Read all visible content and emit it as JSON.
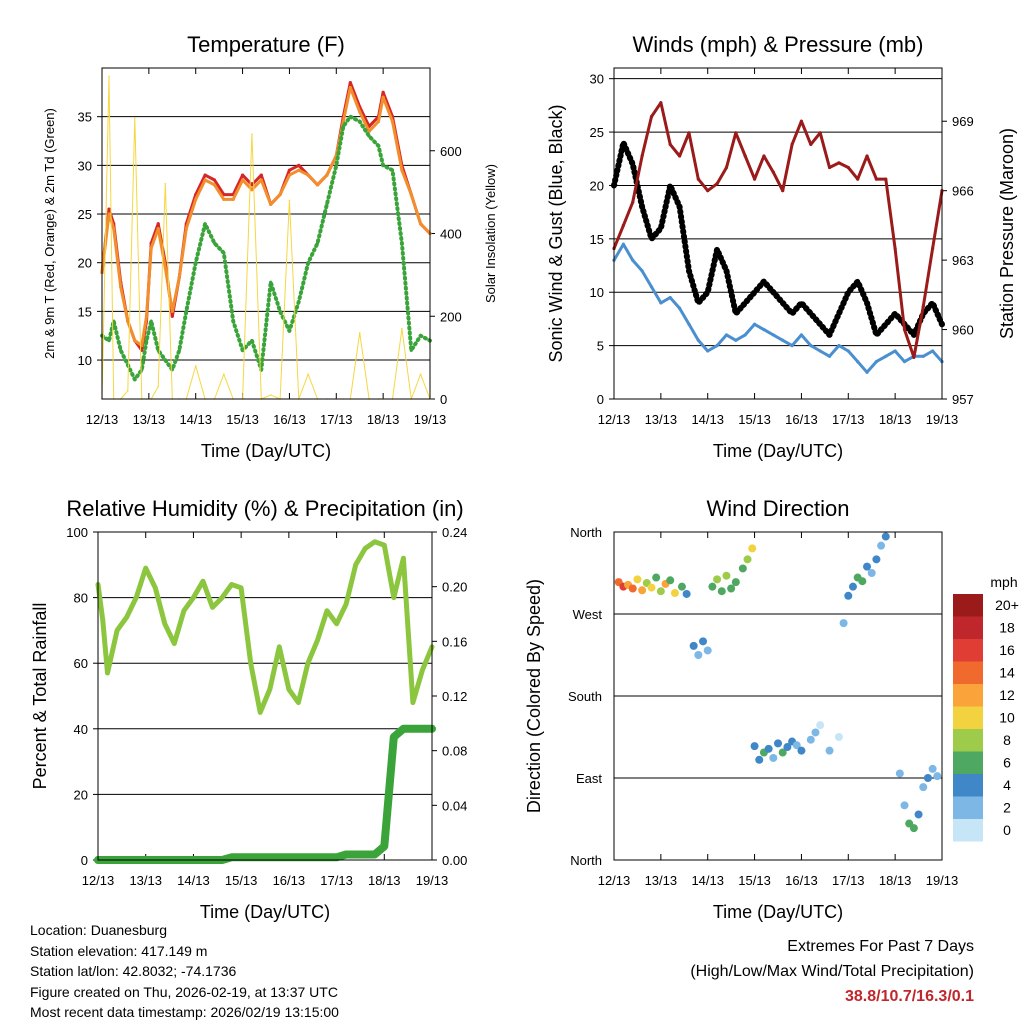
{
  "days": [
    "12/13",
    "13/13",
    "14/13",
    "15/13",
    "16/13",
    "17/13",
    "18/13",
    "19/13"
  ],
  "chart_data": [
    {
      "id": "temperature",
      "type": "line",
      "title": "Temperature (F)",
      "xlabel": "Time (Day/UTC)",
      "ylabel": "2m & 9m T (Red, Orange) & 2m Td (Green)",
      "ylabel_right": "Solar Insolation (Yellow)",
      "ylim": [
        6,
        40
      ],
      "yticks": [
        10,
        15,
        20,
        25,
        30,
        35
      ],
      "ylim_right": [
        0,
        800
      ],
      "yticks_right": [
        0,
        200,
        400,
        600
      ],
      "x_days": [
        0,
        0.15,
        0.25,
        0.4,
        0.55,
        0.7,
        0.85,
        0.95,
        1.05,
        1.2,
        1.35,
        1.5,
        1.65,
        1.8,
        2.0,
        2.2,
        2.4,
        2.6,
        2.8,
        3.0,
        3.2,
        3.4,
        3.6,
        3.8,
        4.0,
        4.2,
        4.4,
        4.6,
        4.8,
        5.0,
        5.15,
        5.3,
        5.5,
        5.7,
        5.9,
        6.0,
        6.2,
        6.4,
        6.6,
        6.8,
        7.0
      ],
      "series": [
        {
          "name": "2m T",
          "color": "#d62728",
          "values": [
            19,
            25.5,
            24,
            18,
            14,
            12,
            11,
            14,
            22,
            24,
            20,
            14.5,
            18.5,
            24,
            27,
            29,
            28.5,
            27,
            27,
            29,
            28,
            29,
            26,
            27,
            29.5,
            30,
            29,
            28,
            29,
            31,
            35,
            38.5,
            36,
            34,
            35,
            37.5,
            35,
            30,
            27,
            24,
            23
          ]
        },
        {
          "name": "9m T",
          "color": "#f28e2b",
          "values": [
            19,
            25,
            23.5,
            17.5,
            14,
            12,
            11.5,
            14.5,
            21.5,
            23.5,
            19.5,
            15,
            18.5,
            23.5,
            26.5,
            28.5,
            28,
            26.5,
            26.5,
            28.5,
            27.5,
            28.5,
            26,
            27,
            29,
            29.5,
            29,
            28,
            29,
            31,
            34.5,
            38,
            35.5,
            33.5,
            34.5,
            37,
            34.5,
            29.5,
            27,
            24,
            23
          ]
        },
        {
          "name": "2m Td",
          "color": "#3aa43a",
          "values": [
            12.5,
            12,
            14,
            11,
            9.5,
            8,
            9,
            12,
            14,
            11,
            10,
            9,
            11,
            15,
            20,
            24,
            22,
            21,
            14,
            11,
            12,
            9,
            18,
            15,
            13,
            16,
            20,
            22,
            26,
            30,
            34,
            35,
            34.5,
            33,
            32,
            30,
            29.5,
            22,
            11,
            12.5,
            12
          ]
        },
        {
          "name": "Solar Insolation",
          "color": "#f5d742",
          "axis": "right",
          "values": [
            0,
            780,
            0,
            0,
            20,
            680,
            0,
            0,
            0,
            30,
            520,
            0,
            0,
            0,
            80,
            0,
            0,
            60,
            0,
            0,
            640,
            0,
            10,
            0,
            480,
            0,
            60,
            0,
            0,
            0,
            0,
            0,
            160,
            0,
            0,
            0,
            0,
            170,
            0,
            60,
            0
          ]
        }
      ]
    },
    {
      "id": "winds",
      "type": "line",
      "title": "Winds (mph) & Pressure (mb)",
      "xlabel": "Time (Day/UTC)",
      "ylabel": "Sonic Wind & Gust (Blue, Black)",
      "ylabel_right": "Station Pressure (Maroon)",
      "ylim": [
        0,
        31
      ],
      "yticks": [
        0,
        5,
        10,
        15,
        20,
        25,
        30
      ],
      "ylim_right": [
        957,
        971.3
      ],
      "yticks_right": [
        957,
        960,
        963,
        966,
        969
      ],
      "x_days": [
        0,
        0.2,
        0.4,
        0.6,
        0.8,
        1.0,
        1.2,
        1.4,
        1.6,
        1.8,
        2.0,
        2.2,
        2.4,
        2.6,
        2.8,
        3.0,
        3.2,
        3.4,
        3.6,
        3.8,
        4.0,
        4.2,
        4.4,
        4.6,
        4.8,
        5.0,
        5.2,
        5.4,
        5.6,
        5.8,
        6.0,
        6.2,
        6.4,
        6.6,
        6.8,
        7.0
      ],
      "series": [
        {
          "name": "Sonic Wind",
          "color": "#4a8fd0",
          "values": [
            13,
            14.5,
            13,
            12,
            10.5,
            9,
            9.5,
            8.5,
            7,
            5.5,
            4.5,
            5,
            6,
            5.5,
            6,
            7,
            6.5,
            6,
            5.5,
            5,
            6,
            5,
            4.5,
            4,
            5,
            4.5,
            3.5,
            2.5,
            3.5,
            4,
            4.5,
            3.5,
            4,
            4,
            4.5,
            3.5
          ]
        },
        {
          "name": "Gust",
          "color": "#000000",
          "values": [
            20,
            24,
            22,
            18,
            15,
            16,
            20,
            18,
            12,
            9,
            10,
            14,
            12,
            8,
            9,
            10,
            11,
            10,
            9,
            8,
            9,
            8,
            7,
            6,
            8,
            10,
            11,
            9,
            6,
            7,
            8,
            7,
            6,
            8,
            9,
            7
          ]
        },
        {
          "name": "Station Pressure",
          "color": "#9b1b1b",
          "axis": "right",
          "values": [
            963.5,
            964.5,
            965.5,
            967.5,
            969.2,
            969.8,
            968,
            967.5,
            968.5,
            966.5,
            966,
            966.3,
            967,
            968.5,
            967.5,
            966.5,
            967.5,
            966.8,
            966,
            968,
            969,
            968,
            968.5,
            967,
            967.2,
            967,
            966.5,
            967.5,
            966.5,
            966.5,
            963.5,
            960,
            958.8,
            961,
            963.5,
            966
          ]
        }
      ]
    },
    {
      "id": "humidity",
      "type": "line",
      "title": "Relative Humidity (%) & Precipitation (in)",
      "xlabel": "Time (Day/UTC)",
      "ylabel": "Percent & Total Rainfall",
      "ylim": [
        0,
        100
      ],
      "yticks": [
        0,
        20,
        40,
        60,
        80,
        100
      ],
      "ylim_right": [
        0,
        0.24
      ],
      "yticks_right": [
        0.0,
        0.04,
        0.08,
        0.12,
        0.16,
        0.2,
        0.24
      ],
      "x_days": [
        0,
        0.1,
        0.2,
        0.4,
        0.6,
        0.8,
        1.0,
        1.2,
        1.4,
        1.6,
        1.8,
        2.0,
        2.2,
        2.4,
        2.6,
        2.8,
        3.0,
        3.2,
        3.4,
        3.6,
        3.8,
        4.0,
        4.2,
        4.4,
        4.6,
        4.8,
        5.0,
        5.2,
        5.4,
        5.6,
        5.8,
        6.0,
        6.2,
        6.4,
        6.6,
        6.8,
        7.0
      ],
      "series": [
        {
          "name": "Relative Humidity",
          "color": "#8cc63f",
          "values": [
            84,
            73,
            57,
            70,
            74,
            80,
            89,
            83,
            72,
            66,
            76,
            80,
            85,
            77,
            80,
            84,
            83,
            60,
            45,
            52,
            65,
            52,
            48,
            60,
            67,
            76,
            72,
            78,
            90,
            95,
            97,
            96,
            80,
            92,
            48,
            58,
            65
          ]
        },
        {
          "name": "Total Precipitation",
          "color": "#3aa43a",
          "axis": "right",
          "values": [
            0,
            0,
            0,
            0,
            0,
            0,
            0,
            0,
            0,
            0,
            0,
            0,
            0,
            0,
            0,
            0.002,
            0.002,
            0.002,
            0.002,
            0.002,
            0.002,
            0.002,
            0.002,
            0.002,
            0.002,
            0.002,
            0.002,
            0.004,
            0.004,
            0.004,
            0.004,
            0.01,
            0.09,
            0.096,
            0.096,
            0.096,
            0.096
          ]
        }
      ]
    },
    {
      "id": "direction",
      "type": "scatter",
      "title": "Wind Direction",
      "xlabel": "Time (Day/UTC)",
      "ylabel": "Direction (Colored By Speed)",
      "ylim": [
        0,
        360
      ],
      "ytick_labels": [
        "North",
        "East",
        "South",
        "West",
        "North"
      ],
      "points": [
        [
          0.1,
          305,
          14
        ],
        [
          0.2,
          300,
          16
        ],
        [
          0.3,
          302,
          12
        ],
        [
          0.4,
          298,
          15
        ],
        [
          0.5,
          308,
          10
        ],
        [
          0.6,
          296,
          13
        ],
        [
          0.7,
          304,
          8
        ],
        [
          0.8,
          299,
          11
        ],
        [
          0.9,
          310,
          7
        ],
        [
          1.0,
          295,
          9
        ],
        [
          1.1,
          303,
          12
        ],
        [
          1.2,
          307,
          6
        ],
        [
          1.3,
          293,
          10
        ],
        [
          1.45,
          300,
          7
        ],
        [
          1.55,
          292,
          5
        ],
        [
          1.7,
          235,
          4
        ],
        [
          1.8,
          225,
          3
        ],
        [
          1.9,
          240,
          4
        ],
        [
          2.0,
          230,
          2
        ],
        [
          2.1,
          300,
          7
        ],
        [
          2.2,
          308,
          8
        ],
        [
          2.3,
          295,
          6
        ],
        [
          2.4,
          312,
          8
        ],
        [
          2.5,
          298,
          6
        ],
        [
          2.6,
          305,
          7
        ],
        [
          2.75,
          320,
          6
        ],
        [
          2.85,
          330,
          9
        ],
        [
          2.95,
          342,
          10
        ],
        [
          3.0,
          125,
          4
        ],
        [
          3.1,
          110,
          5
        ],
        [
          3.2,
          118,
          6
        ],
        [
          3.3,
          122,
          4
        ],
        [
          3.4,
          112,
          3
        ],
        [
          3.5,
          128,
          5
        ],
        [
          3.6,
          118,
          6
        ],
        [
          3.7,
          124,
          4
        ],
        [
          3.8,
          130,
          5
        ],
        [
          3.9,
          126,
          3
        ],
        [
          4.0,
          120,
          4
        ],
        [
          4.2,
          132,
          2
        ],
        [
          4.3,
          140,
          2
        ],
        [
          4.4,
          148,
          1
        ],
        [
          4.6,
          120,
          2
        ],
        [
          4.8,
          135,
          1
        ],
        [
          4.9,
          260,
          3
        ],
        [
          5.0,
          290,
          4
        ],
        [
          5.1,
          300,
          5
        ],
        [
          5.2,
          310,
          6
        ],
        [
          5.3,
          306,
          7
        ],
        [
          5.4,
          322,
          4
        ],
        [
          5.5,
          315,
          3
        ],
        [
          5.6,
          330,
          4
        ],
        [
          5.7,
          345,
          3
        ],
        [
          5.8,
          355,
          4
        ],
        [
          6.1,
          95,
          3
        ],
        [
          6.2,
          60,
          2
        ],
        [
          6.3,
          40,
          6
        ],
        [
          6.4,
          35,
          7
        ],
        [
          6.5,
          50,
          4
        ],
        [
          6.6,
          80,
          3
        ],
        [
          6.7,
          90,
          4
        ],
        [
          6.8,
          100,
          3
        ],
        [
          6.9,
          92,
          2
        ]
      ]
    }
  ],
  "legend": {
    "title": "mph",
    "labels": [
      "20+",
      "18",
      "16",
      "14",
      "12",
      "10",
      "8",
      "6",
      "4",
      "2",
      "0"
    ],
    "colors": [
      "#9b1b1b",
      "#c0272d",
      "#e03e35",
      "#f06a2e",
      "#f9a33a",
      "#f3d23f",
      "#9fcb4a",
      "#4ea862",
      "#3f87c6",
      "#7cb7e6",
      "#c6e6f7"
    ]
  },
  "footer": {
    "location": "Location: Duanesburg",
    "elevation": "Station elevation: 417.149 m",
    "latlon": "Station lat/lon: 42.8032; -74.1736",
    "created": "Figure created on Thu, 2026-02-19, at 13:37 UTC",
    "recent": "Most recent data timestamp: 2026/02/19 13:15:00"
  },
  "extremes": {
    "title": "Extremes For Past 7 Days",
    "subtitle": "(High/Low/Max Wind/Total Precipitation)",
    "value": "38.8/10.7/16.3/0.1"
  }
}
